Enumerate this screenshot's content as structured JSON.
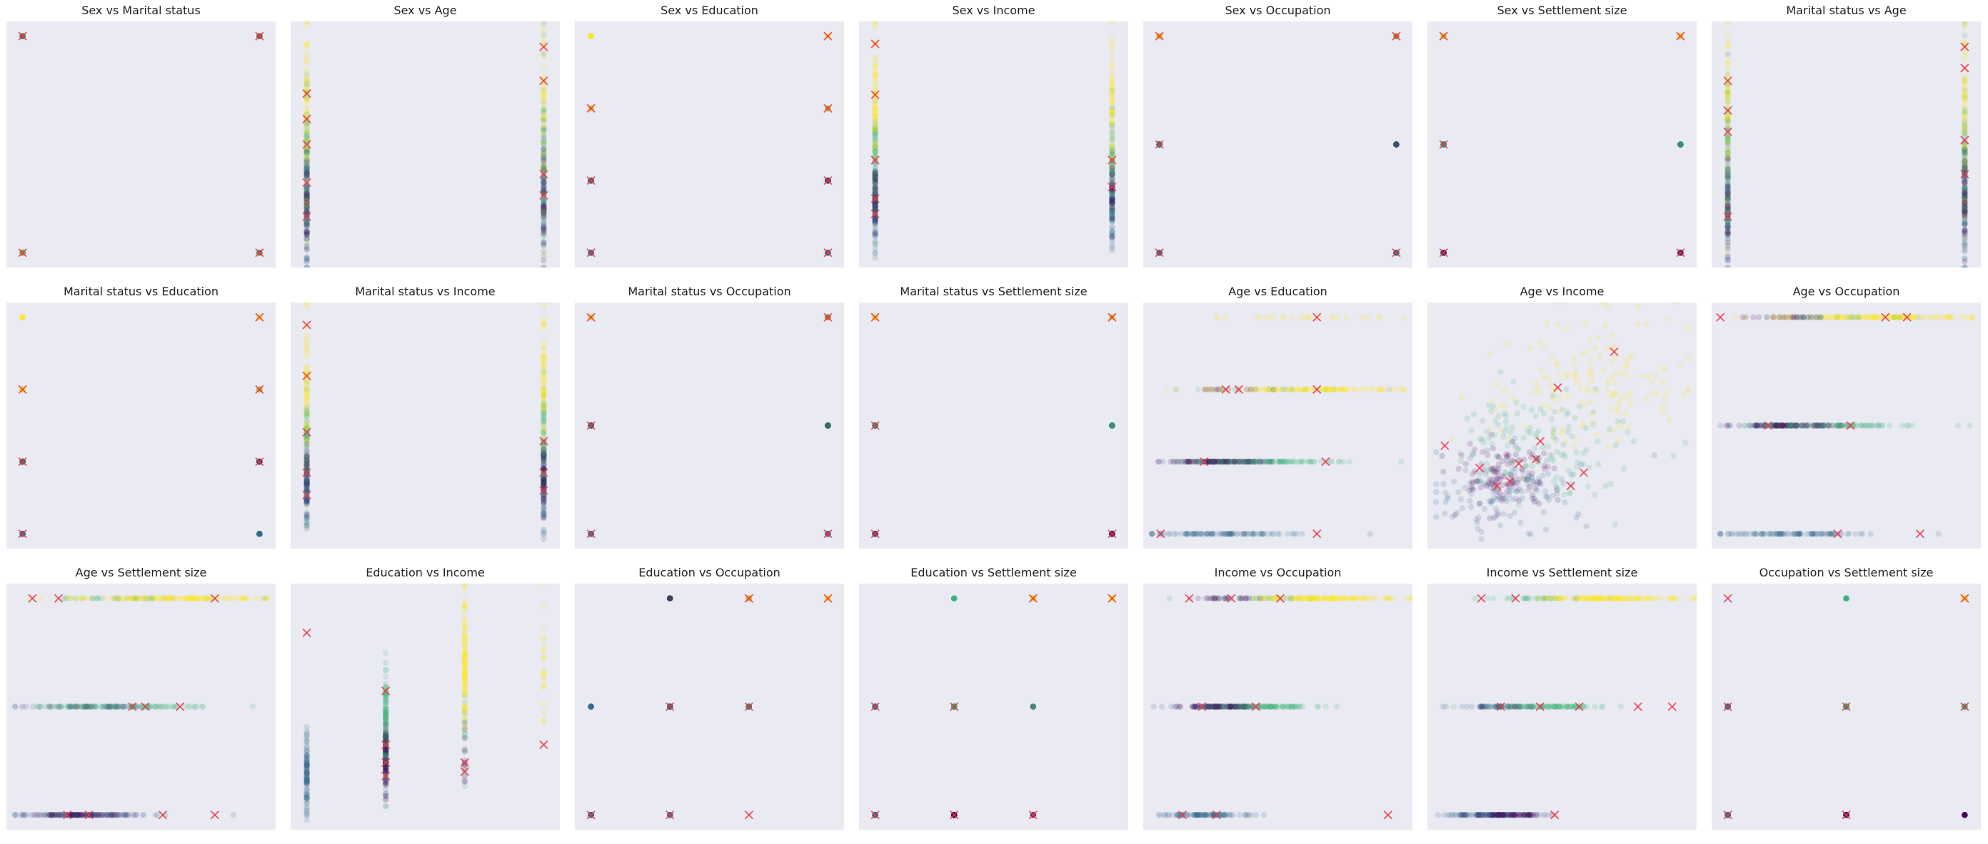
{
  "colors": {
    "panel_bg": "#eaeaf2",
    "cluster_0": "#440154",
    "cluster_1": "#31688e",
    "cluster_2": "#35b779",
    "cluster_3": "#fde725",
    "centroid": "#e63946"
  },
  "chart_data": [
    {
      "type": "scatter",
      "title": "Sex vs Marital status",
      "x_var": "Sex",
      "y_var": "Marital status",
      "x_kind": "binary",
      "y_kind": "binary",
      "centroids": [
        [
          0,
          0
        ],
        [
          0,
          1
        ],
        [
          1,
          0
        ],
        [
          1,
          1
        ]
      ]
    },
    {
      "type": "scatter",
      "title": "Sex vs Age",
      "x_var": "Sex",
      "y_var": "Age",
      "x_kind": "binary",
      "y_kind": "age",
      "ylim": [
        18,
        76
      ],
      "centroids": [
        [
          0,
          30
        ],
        [
          0,
          38
        ],
        [
          0,
          47
        ],
        [
          0,
          53
        ],
        [
          0,
          59
        ],
        [
          1,
          35
        ],
        [
          1,
          40
        ],
        [
          1,
          70
        ],
        [
          1,
          62
        ]
      ]
    },
    {
      "type": "scatter",
      "title": "Sex vs Education",
      "x_var": "Sex",
      "y_var": "Education",
      "x_kind": "binary",
      "y_kind": "edu",
      "centroids": [
        [
          0,
          0
        ],
        [
          0,
          1
        ],
        [
          0,
          2
        ],
        [
          1,
          0
        ],
        [
          1,
          1
        ],
        [
          1,
          2
        ],
        [
          1,
          3
        ]
      ]
    },
    {
      "type": "scatter",
      "title": "Sex vs Income",
      "x_var": "Sex",
      "y_var": "Income",
      "x_kind": "binary",
      "y_kind": "income",
      "ylim": [
        35000,
        310000
      ],
      "centroids": [
        [
          0,
          285000
        ],
        [
          0,
          228000
        ],
        [
          0,
          155000
        ],
        [
          0,
          112000
        ],
        [
          0,
          95000
        ],
        [
          1,
          125000
        ],
        [
          1,
          155000
        ]
      ]
    },
    {
      "type": "scatter",
      "title": "Sex vs Occupation",
      "x_var": "Sex",
      "y_var": "Occupation",
      "x_kind": "binary",
      "y_kind": "occ",
      "centroids": [
        [
          0,
          0
        ],
        [
          0,
          1
        ],
        [
          0,
          2
        ],
        [
          1,
          0
        ],
        [
          1,
          2
        ]
      ]
    },
    {
      "type": "scatter",
      "title": "Sex vs Settlement size",
      "x_var": "Sex",
      "y_var": "Settlement size",
      "x_kind": "binary",
      "y_kind": "occ",
      "centroids": [
        [
          0,
          0
        ],
        [
          0,
          1
        ],
        [
          0,
          2
        ],
        [
          1,
          0
        ],
        [
          1,
          2
        ]
      ]
    },
    {
      "type": "scatter",
      "title": "Marital status vs Age",
      "x_var": "Marital status",
      "y_var": "Age",
      "x_kind": "binary",
      "y_kind": "age",
      "ylim": [
        18,
        76
      ],
      "centroids": [
        [
          0,
          30
        ],
        [
          0,
          55
        ],
        [
          0,
          62
        ],
        [
          0,
          50
        ],
        [
          1,
          65
        ],
        [
          1,
          40
        ],
        [
          1,
          48
        ],
        [
          1,
          70
        ]
      ]
    },
    {
      "type": "scatter",
      "title": "Marital status vs Education",
      "x_var": "Marital status",
      "y_var": "Education",
      "x_kind": "binary",
      "y_kind": "edu",
      "centroids": [
        [
          0,
          0
        ],
        [
          0,
          1
        ],
        [
          0,
          2
        ],
        [
          1,
          1
        ],
        [
          1,
          2
        ],
        [
          1,
          3
        ]
      ]
    },
    {
      "type": "scatter",
      "title": "Marital status vs Income",
      "x_var": "Marital status",
      "y_var": "Income",
      "x_kind": "binary",
      "y_kind": "income",
      "ylim": [
        35000,
        310000
      ],
      "centroids": [
        [
          0,
          285000
        ],
        [
          0,
          228000
        ],
        [
          0,
          165000
        ],
        [
          0,
          120000
        ],
        [
          0,
          95000
        ],
        [
          1,
          155000
        ],
        [
          1,
          120000
        ],
        [
          1,
          100000
        ]
      ]
    },
    {
      "type": "scatter",
      "title": "Marital status vs Occupation",
      "x_var": "Marital status",
      "y_var": "Occupation",
      "x_kind": "binary",
      "y_kind": "occ",
      "centroids": [
        [
          0,
          0
        ],
        [
          0,
          1
        ],
        [
          0,
          2
        ],
        [
          1,
          0
        ],
        [
          1,
          2
        ]
      ]
    },
    {
      "type": "scatter",
      "title": "Marital status vs Settlement size",
      "x_var": "Marital status",
      "y_var": "Settlement size",
      "x_kind": "binary",
      "y_kind": "occ",
      "centroids": [
        [
          0,
          0
        ],
        [
          0,
          1
        ],
        [
          0,
          2
        ],
        [
          1,
          0
        ],
        [
          1,
          2
        ]
      ]
    },
    {
      "type": "scatter",
      "title": "Age vs Education",
      "x_var": "Age",
      "y_var": "Education",
      "x_kind": "age",
      "y_kind": "edu",
      "xlim": [
        16,
        78
      ],
      "centroids": [
        [
          20,
          0
        ],
        [
          30,
          1
        ],
        [
          35,
          2
        ],
        [
          38,
          2
        ],
        [
          56,
          2
        ],
        [
          58,
          1
        ],
        [
          56,
          0
        ],
        [
          56,
          3
        ]
      ]
    },
    {
      "type": "scatter",
      "title": "Age vs Income",
      "x_var": "Age",
      "y_var": "Income",
      "x_kind": "age",
      "y_kind": "income",
      "xlim": [
        16,
        78
      ],
      "ylim": [
        35000,
        310000
      ],
      "centroids": [
        [
          20,
          150000
        ],
        [
          28,
          125000
        ],
        [
          32,
          105000
        ],
        [
          35,
          110000
        ],
        [
          37,
          130000
        ],
        [
          41,
          135000
        ],
        [
          42,
          155000
        ],
        [
          46,
          215000
        ],
        [
          49,
          105000
        ],
        [
          52,
          120000
        ],
        [
          59,
          255000
        ]
      ]
    },
    {
      "type": "scatter",
      "title": "Age vs Occupation",
      "x_var": "Age",
      "y_var": "Occupation",
      "x_kind": "age",
      "y_kind": "occ",
      "xlim": [
        16,
        78
      ],
      "centroids": [
        [
          18,
          2
        ],
        [
          29,
          1
        ],
        [
          45,
          0
        ],
        [
          48,
          1
        ],
        [
          56,
          2
        ],
        [
          61,
          2
        ],
        [
          64,
          0
        ]
      ]
    },
    {
      "type": "scatter",
      "title": "Age vs Settlement size",
      "x_var": "Age",
      "y_var": "Settlement size",
      "x_kind": "age",
      "y_kind": "occ",
      "xlim": [
        16,
        78
      ],
      "centroids": [
        [
          22,
          2
        ],
        [
          28,
          2
        ],
        [
          30,
          0
        ],
        [
          35,
          0
        ],
        [
          45,
          1
        ],
        [
          48,
          1
        ],
        [
          52,
          0
        ],
        [
          56,
          1
        ],
        [
          64,
          0
        ],
        [
          64,
          2
        ]
      ]
    },
    {
      "type": "scatter",
      "title": "Education vs Income",
      "x_var": "Education",
      "y_var": "Income",
      "x_kind": "edu",
      "y_kind": "income",
      "ylim": [
        35000,
        310000
      ],
      "centroids": [
        [
          0,
          255000
        ],
        [
          1,
          190000
        ],
        [
          1,
          130000
        ],
        [
          1,
          110000
        ],
        [
          1,
          95000
        ],
        [
          2,
          110000
        ],
        [
          2,
          100000
        ],
        [
          3,
          130000
        ]
      ]
    },
    {
      "type": "scatter",
      "title": "Education vs Occupation",
      "x_var": "Education",
      "y_var": "Occupation",
      "x_kind": "edu",
      "y_kind": "occ",
      "centroids": [
        [
          0,
          0
        ],
        [
          1,
          0
        ],
        [
          1,
          1
        ],
        [
          2,
          0
        ],
        [
          2,
          1
        ],
        [
          2,
          2
        ],
        [
          3,
          2
        ]
      ]
    },
    {
      "type": "scatter",
      "title": "Education vs Settlement size",
      "x_var": "Education",
      "y_var": "Settlement size",
      "x_kind": "edu",
      "y_kind": "occ",
      "centroids": [
        [
          0,
          0
        ],
        [
          0,
          1
        ],
        [
          1,
          0
        ],
        [
          1,
          1
        ],
        [
          2,
          0
        ],
        [
          2,
          2
        ],
        [
          3,
          2
        ]
      ]
    },
    {
      "type": "scatter",
      "title": "Income vs Occupation",
      "x_var": "Income",
      "y_var": "Occupation",
      "x_kind": "income",
      "y_kind": "occ",
      "xlim": [
        35000,
        310000
      ],
      "centroids": [
        [
          75000,
          0
        ],
        [
          82000,
          2
        ],
        [
          95000,
          1
        ],
        [
          110000,
          0
        ],
        [
          125000,
          2
        ],
        [
          150000,
          1
        ],
        [
          175000,
          2
        ],
        [
          285000,
          0
        ]
      ]
    },
    {
      "type": "scatter",
      "title": "Income vs Settlement size",
      "x_var": "Income",
      "y_var": "Settlement size",
      "x_kind": "income",
      "y_kind": "occ",
      "xlim": [
        35000,
        310000
      ],
      "centroids": [
        [
          90000,
          2
        ],
        [
          110000,
          1
        ],
        [
          125000,
          2
        ],
        [
          150000,
          1
        ],
        [
          165000,
          0
        ],
        [
          190000,
          1
        ],
        [
          250000,
          1
        ],
        [
          285000,
          1
        ]
      ]
    },
    {
      "type": "scatter",
      "title": "Occupation vs Settlement size",
      "x_var": "Occupation",
      "y_var": "Settlement size",
      "x_kind": "occ",
      "y_kind": "occ",
      "centroids": [
        [
          0,
          0
        ],
        [
          0,
          1
        ],
        [
          0,
          2
        ],
        [
          1,
          0
        ],
        [
          1,
          1
        ],
        [
          2,
          1
        ],
        [
          2,
          2
        ]
      ]
    }
  ]
}
